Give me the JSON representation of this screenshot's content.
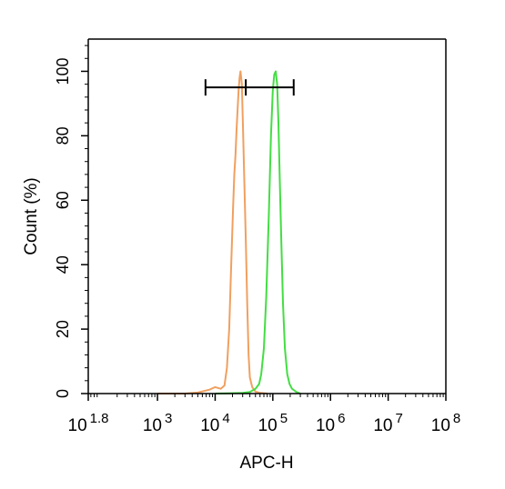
{
  "chart_data": {
    "type": "line",
    "subtype": "flow-cytometry-histogram",
    "xlabel": "APC-H",
    "ylabel": "Count  (%)",
    "x_scale": "log10",
    "xlim": [
      63.1,
      100000000
    ],
    "ylim": [
      0,
      110
    ],
    "y_ticks": [
      "0",
      "20",
      "40",
      "60",
      "80",
      "100"
    ],
    "x_ticks": [
      {
        "base": "10",
        "exp": "1.8",
        "value": 63.1
      },
      {
        "base": "10",
        "exp": "3",
        "value": 1000
      },
      {
        "base": "10",
        "exp": "4",
        "value": 10000
      },
      {
        "base": "10",
        "exp": "5",
        "value": 100000
      },
      {
        "base": "10",
        "exp": "6",
        "value": 1000000
      },
      {
        "base": "10",
        "exp": "7",
        "value": 10000000
      },
      {
        "base": "10",
        "exp": "8",
        "value": 100000000
      }
    ],
    "grid": false,
    "legend": "none",
    "gate": {
      "x_start": 6800,
      "x_mid": 34000,
      "x_end": 230000,
      "y": 95
    },
    "series": [
      {
        "color": "#f0a060",
        "points": [
          [
            1000,
            0
          ],
          [
            3000,
            0
          ],
          [
            5000,
            0.3
          ],
          [
            8000,
            1.2
          ],
          [
            10000,
            2
          ],
          [
            12500,
            1.5
          ],
          [
            14500,
            2.5
          ],
          [
            16000,
            8
          ],
          [
            17500,
            20
          ],
          [
            19000,
            40
          ],
          [
            20500,
            58
          ],
          [
            21500,
            68
          ],
          [
            22500,
            74
          ],
          [
            23500,
            82
          ],
          [
            24500,
            88
          ],
          [
            25500,
            94
          ],
          [
            26500,
            98
          ],
          [
            27500,
            100
          ],
          [
            29000,
            96
          ],
          [
            30500,
            82
          ],
          [
            32000,
            66
          ],
          [
            34000,
            48
          ],
          [
            36000,
            28
          ],
          [
            38000,
            12
          ],
          [
            40000,
            5
          ],
          [
            44000,
            2
          ],
          [
            50000,
            0.6
          ],
          [
            60000,
            0.2
          ],
          [
            80000,
            0
          ]
        ]
      },
      {
        "color": "#44dd44",
        "points": [
          [
            10000,
            0
          ],
          [
            30000,
            0.2
          ],
          [
            40000,
            0.5
          ],
          [
            50000,
            1.5
          ],
          [
            58000,
            3
          ],
          [
            63000,
            6
          ],
          [
            70000,
            14
          ],
          [
            77000,
            30
          ],
          [
            85000,
            55
          ],
          [
            93000,
            80
          ],
          [
            100000,
            94
          ],
          [
            106000,
            99
          ],
          [
            112000,
            100
          ],
          [
            119000,
            96
          ],
          [
            125000,
            84
          ],
          [
            132000,
            66
          ],
          [
            140000,
            48
          ],
          [
            150000,
            28
          ],
          [
            162000,
            14
          ],
          [
            178000,
            6
          ],
          [
            195000,
            3
          ],
          [
            215000,
            1.5
          ],
          [
            235000,
            1
          ],
          [
            255000,
            0.5
          ],
          [
            300000,
            0
          ]
        ]
      }
    ]
  }
}
